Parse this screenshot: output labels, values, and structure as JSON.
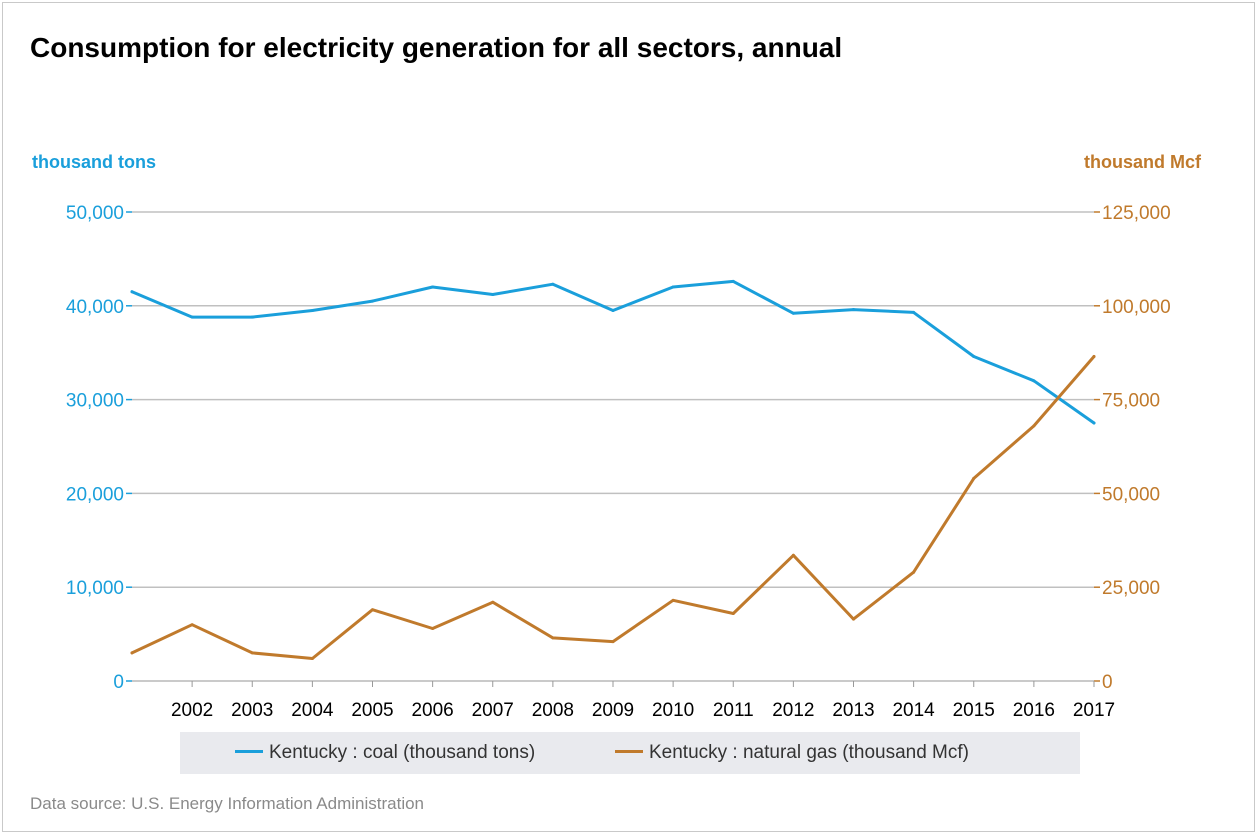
{
  "chart_data": {
    "type": "line",
    "title": "Consumption for electricity generation for all sectors, annual",
    "left_axis": {
      "label": "thousand tons",
      "ylim": [
        0,
        50000
      ],
      "ticks": [
        0,
        10000,
        20000,
        30000,
        40000,
        50000
      ],
      "tick_labels": [
        "0",
        "10,000",
        "20,000",
        "30,000",
        "40,000",
        "50,000"
      ]
    },
    "right_axis": {
      "label": "thousand Mcf",
      "ylim": [
        0,
        125000
      ],
      "ticks": [
        0,
        25000,
        50000,
        75000,
        100000,
        125000
      ],
      "tick_labels": [
        "0",
        "25,000",
        "50,000",
        "75,000",
        "100,000",
        "125,000"
      ]
    },
    "x": [
      2001,
      2002,
      2003,
      2004,
      2005,
      2006,
      2007,
      2008,
      2009,
      2010,
      2011,
      2012,
      2013,
      2014,
      2015,
      2016,
      2017
    ],
    "x_tick_labels": [
      "2002",
      "2003",
      "2004",
      "2005",
      "2006",
      "2007",
      "2008",
      "2009",
      "2010",
      "2011",
      "2012",
      "2013",
      "2014",
      "2015",
      "2016",
      "2017"
    ],
    "series": [
      {
        "name": "Kentucky : coal (thousand tons)",
        "axis": "left",
        "color": "#1a9fdb",
        "values": [
          41500,
          38800,
          38800,
          39500,
          40500,
          42000,
          41200,
          42300,
          39500,
          42000,
          42600,
          39200,
          39600,
          39300,
          34600,
          32000,
          27500
        ]
      },
      {
        "name": "Kentucky : natural gas (thousand Mcf)",
        "axis": "right",
        "color": "#c07a2c",
        "values": [
          7500,
          15000,
          7500,
          6000,
          19000,
          14000,
          21000,
          11500,
          10500,
          21500,
          18000,
          33500,
          16500,
          29000,
          54000,
          68000,
          86500
        ]
      }
    ],
    "grid": true,
    "legend": "bottom"
  },
  "footer": {
    "source": "Data source: U.S. Energy Information Administration"
  },
  "colors": {
    "coal": "#1a9fdb",
    "gas": "#c07a2c",
    "grid": "#c0c0c0",
    "legend_bg": "#e9eaee"
  }
}
